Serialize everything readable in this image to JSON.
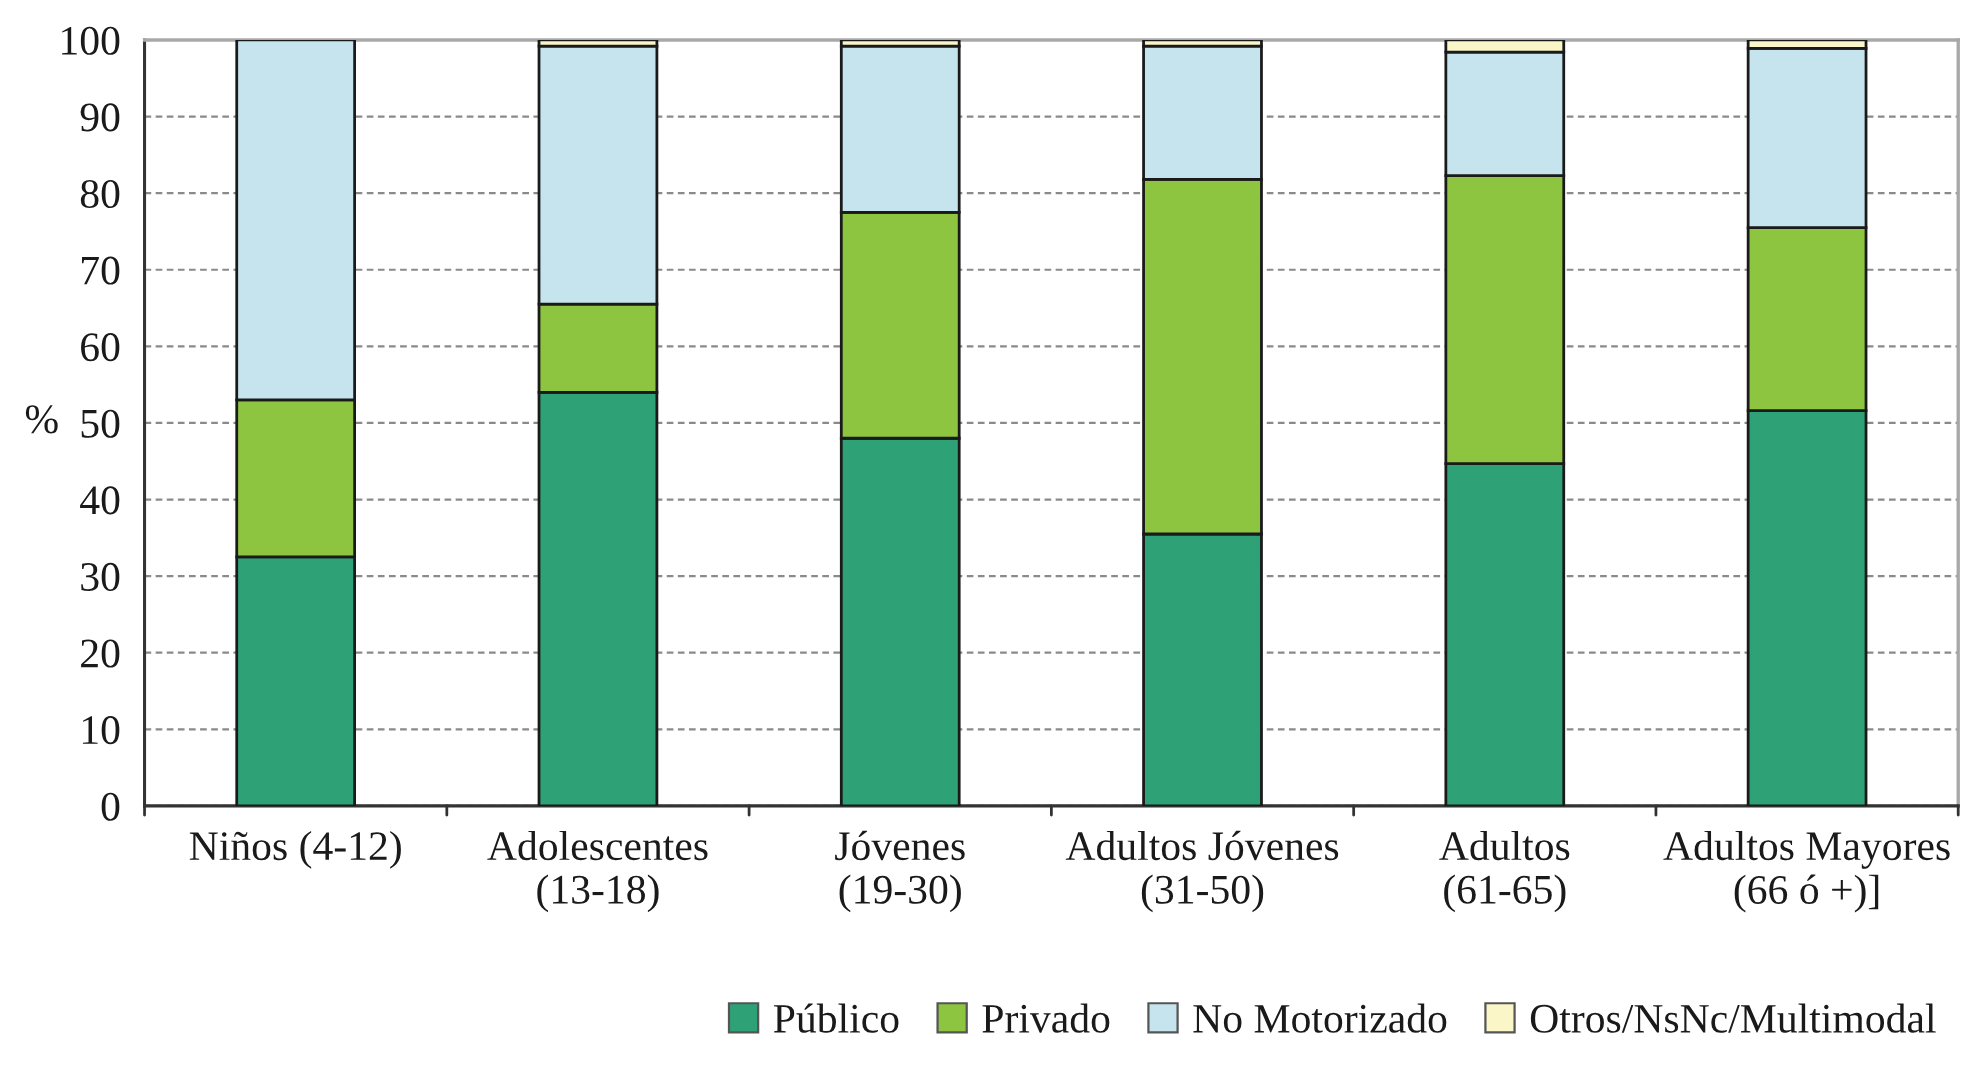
{
  "chart_data": {
    "type": "bar",
    "stacked": true,
    "ylabel": "%",
    "categories": [
      "Niños (4-12)",
      "Adolescentes\n(13-18)",
      "Jóvenes\n(19-30)",
      "Adultos Jóvenes\n(31-50)",
      "Adultos\n(61-65)",
      "Adultos Mayores\n(66 ó +)]"
    ],
    "series": [
      {
        "name": "Público",
        "color": "#2ea276",
        "values": [
          32.5,
          54,
          48,
          35.5,
          44.7,
          51.6
        ]
      },
      {
        "name": "Privado",
        "color": "#8dc440",
        "values": [
          20.5,
          11.5,
          29.5,
          46.3,
          37.6,
          23.9
        ]
      },
      {
        "name": "No Motorizado",
        "color": "#c5e4ed",
        "values": [
          47,
          33.7,
          21.7,
          17.4,
          16.1,
          23.4
        ]
      },
      {
        "name": "Otros/NsNc/Multimodal",
        "color": "#faf6c8",
        "values": [
          0,
          0.8,
          0.8,
          0.8,
          1.6,
          1.1
        ]
      }
    ],
    "ylim": [
      0,
      100
    ],
    "yticks": [
      0,
      10,
      20,
      30,
      40,
      50,
      60,
      70,
      80,
      90,
      100
    ],
    "grid": "y",
    "legend": "bottom right"
  }
}
